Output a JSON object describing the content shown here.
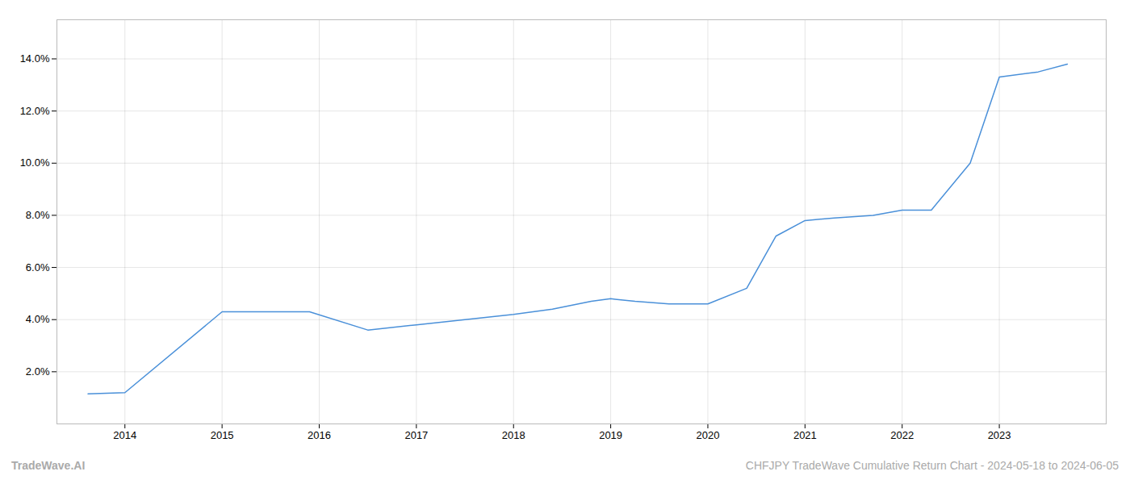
{
  "chart_data": {
    "type": "line",
    "x": [
      2013.62,
      2014.0,
      2015.0,
      2015.9,
      2016.5,
      2017.0,
      2017.5,
      2018.0,
      2018.4,
      2018.8,
      2019.0,
      2019.25,
      2019.6,
      2020.0,
      2020.4,
      2020.7,
      2021.0,
      2021.3,
      2021.7,
      2022.0,
      2022.3,
      2022.7,
      2023.0,
      2023.4,
      2023.7
    ],
    "values": [
      0.0115,
      0.012,
      0.043,
      0.043,
      0.036,
      0.038,
      0.04,
      0.042,
      0.044,
      0.047,
      0.048,
      0.047,
      0.046,
      0.046,
      0.052,
      0.072,
      0.078,
      0.079,
      0.08,
      0.082,
      0.082,
      0.1,
      0.133,
      0.135,
      0.138
    ],
    "color": "#4a90d9",
    "xlim": [
      2013.3,
      2024.1
    ],
    "ylim": [
      0.0,
      0.155
    ],
    "xticks": [
      2014,
      2015,
      2016,
      2017,
      2018,
      2019,
      2020,
      2021,
      2022,
      2023
    ],
    "yticks": [
      {
        "value": 0.02,
        "label": "2.0%"
      },
      {
        "value": 0.04,
        "label": "4.0%"
      },
      {
        "value": 0.06,
        "label": "6.0%"
      },
      {
        "value": 0.08,
        "label": "8.0%"
      },
      {
        "value": 0.1,
        "label": "10.0%"
      },
      {
        "value": 0.12,
        "label": "12.0%"
      },
      {
        "value": 0.14,
        "label": "14.0%"
      }
    ],
    "grid": true,
    "annotations": [
      "TradeWave.AI",
      "CHFJPY TradeWave Cumulative Return Chart - 2024-05-18 to 2024-06-05"
    ]
  }
}
